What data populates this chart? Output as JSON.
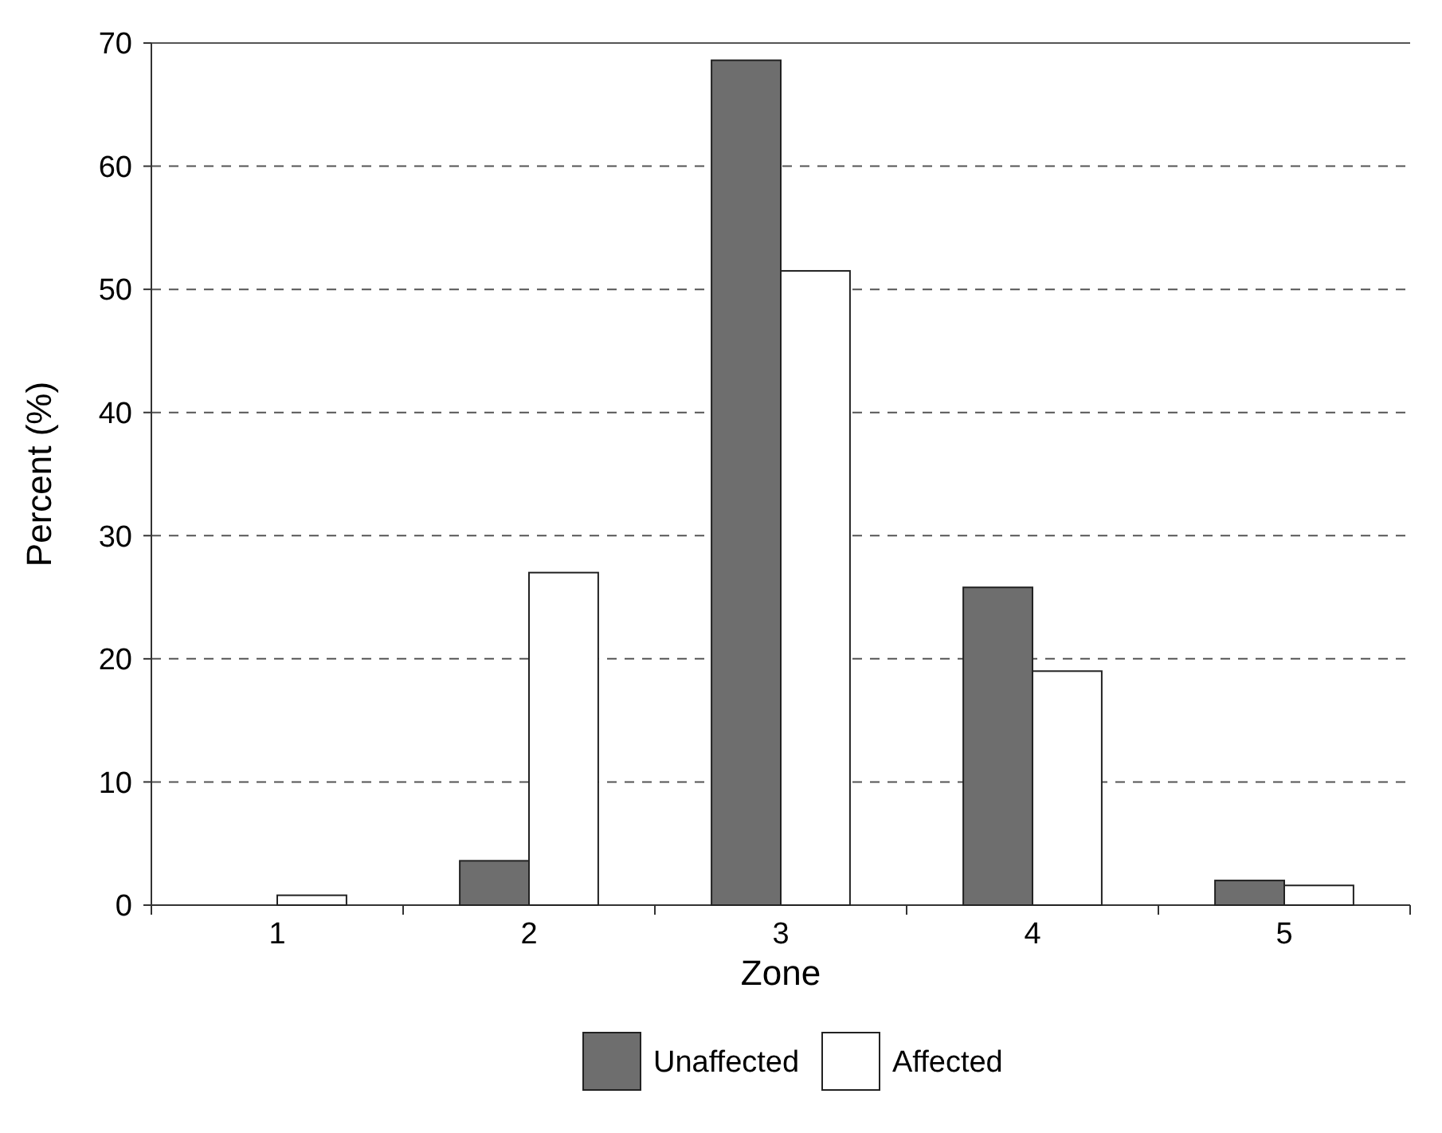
{
  "chart_data": {
    "type": "bar",
    "xlabel": "Zone",
    "ylabel": "Percent (%)",
    "categories": [
      "1",
      "2",
      "3",
      "4",
      "5"
    ],
    "series": [
      {
        "name": "Unaffected",
        "color": "#6e6e6e",
        "values": [
          0,
          3.6,
          68.6,
          25.8,
          2
        ]
      },
      {
        "name": "Affected",
        "color": "#ffffff",
        "values": [
          0.8,
          27,
          51.5,
          19,
          1.6
        ]
      }
    ],
    "ylim": [
      0,
      70
    ],
    "yticks": [
      0,
      10,
      20,
      30,
      40,
      50,
      60,
      70
    ],
    "grid": "y",
    "legend": "bottom"
  }
}
